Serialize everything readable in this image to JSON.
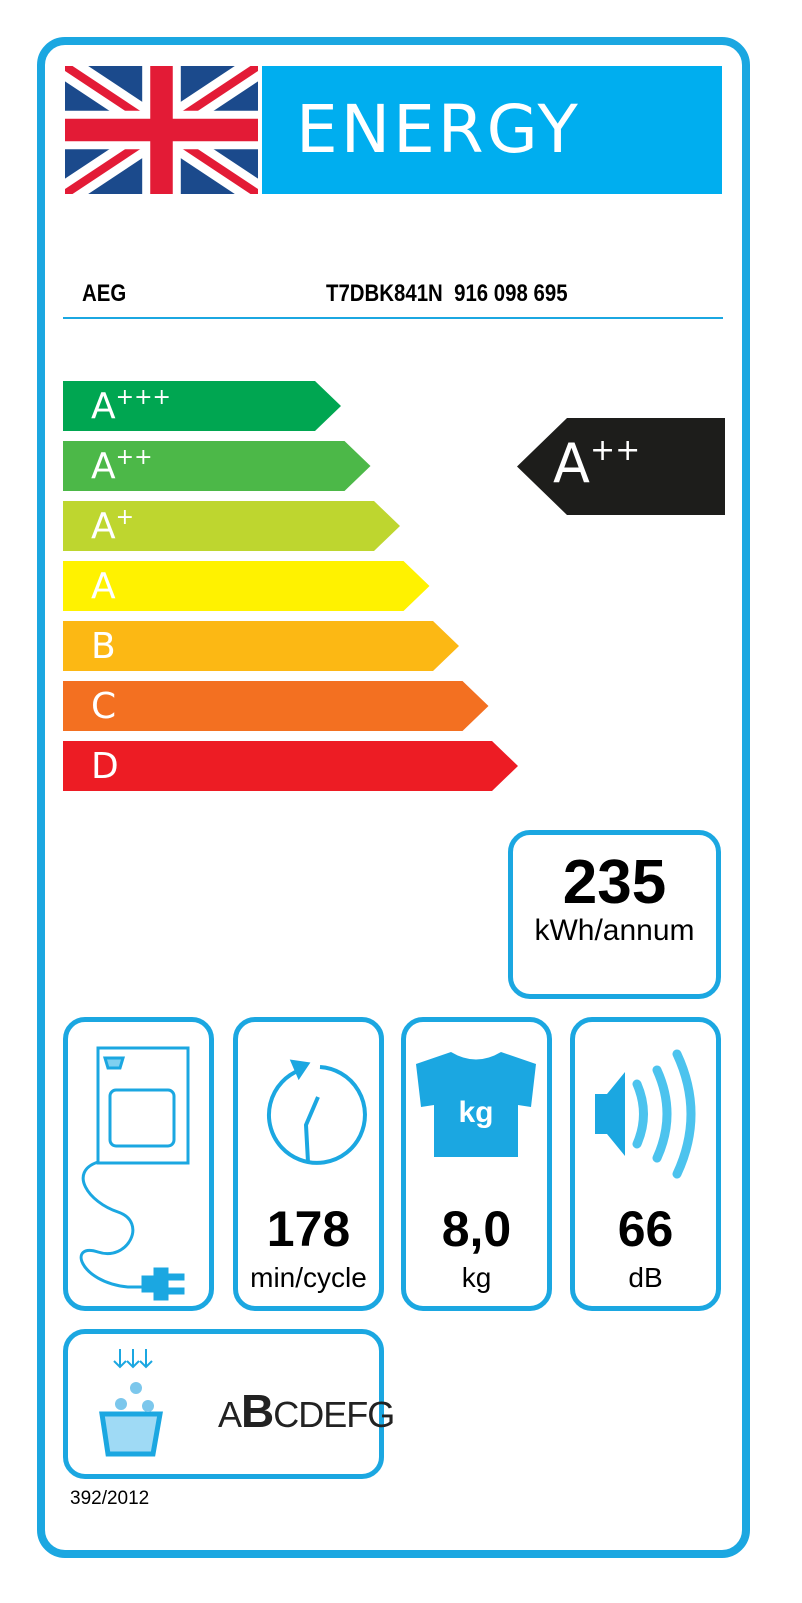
{
  "header": {
    "title": "ENERGY",
    "flag": "uk-flag"
  },
  "supplier": "AEG",
  "model": "T7DBK841N  916 098 695",
  "scale": [
    {
      "letter": "A",
      "plus": "+++",
      "color": "#00a651"
    },
    {
      "letter": "A",
      "plus": "++",
      "color": "#4cb848"
    },
    {
      "letter": "A",
      "plus": "+",
      "color": "#bed62f"
    },
    {
      "letter": "A",
      "plus": "",
      "color": "#fff200"
    },
    {
      "letter": "B",
      "plus": "",
      "color": "#fcb814"
    },
    {
      "letter": "C",
      "plus": "",
      "color": "#f37021"
    },
    {
      "letter": "D",
      "plus": "",
      "color": "#ed1c24"
    }
  ],
  "rating": {
    "letter": "A",
    "plus": "++",
    "color": "#1d1d1b"
  },
  "energy": {
    "value": "235",
    "unit": "kWh/annum"
  },
  "icons": [
    {
      "icon": "tumble-dryer-plug-icon"
    },
    {
      "icon": "clock-cycle-icon",
      "value": "178",
      "unit": "min/cycle"
    },
    {
      "icon": "tshirt-kg-icon",
      "value": "8,0",
      "unit": "kg",
      "icon_text": "kg"
    },
    {
      "icon": "speaker-icon",
      "value": "66",
      "unit": "dB"
    }
  ],
  "condensation": {
    "icon": "condensation-icon",
    "pre": "A",
    "selected": "B",
    "post": "CDEFG"
  },
  "regulation": "392/2012",
  "accent": "#1ba7e1"
}
